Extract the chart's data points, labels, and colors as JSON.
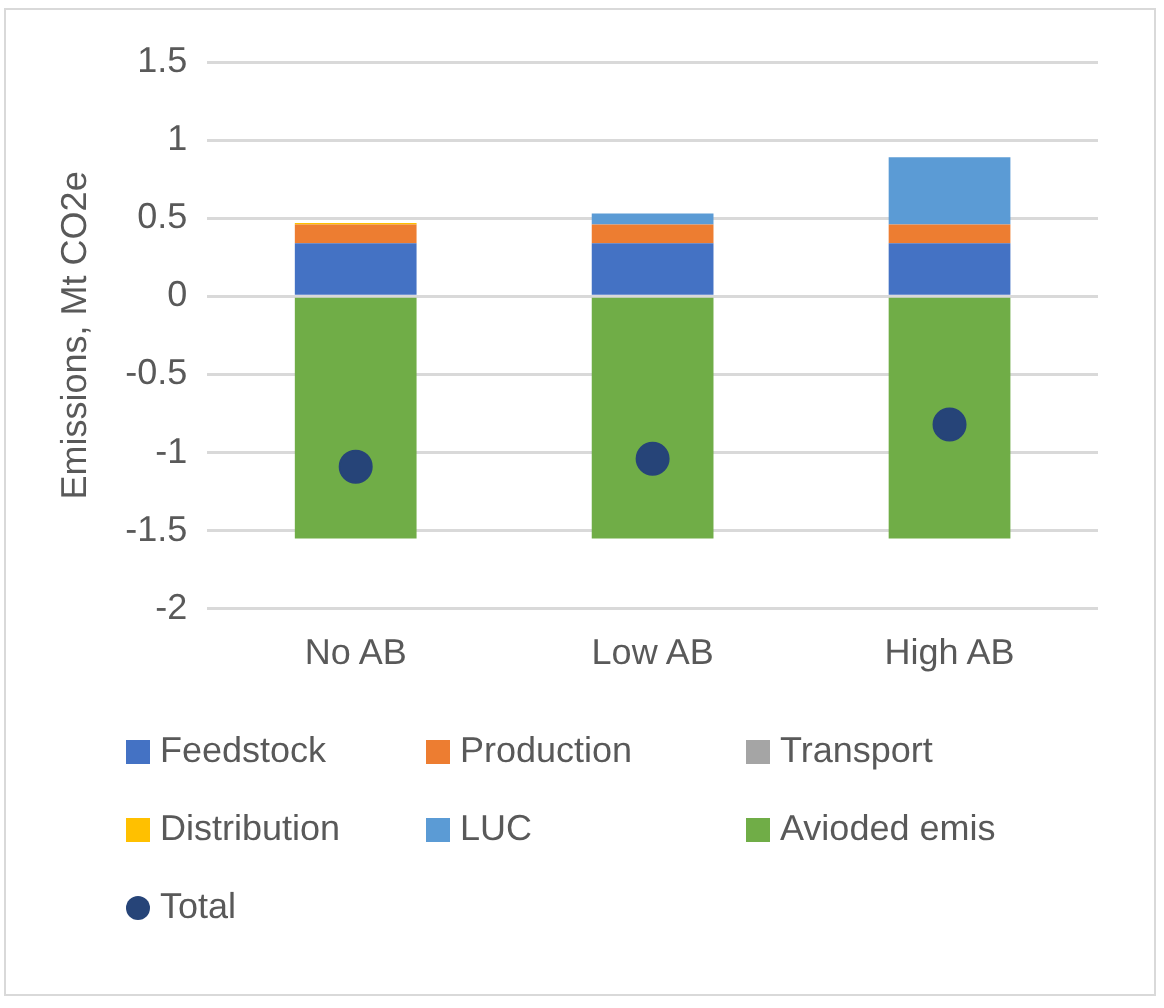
{
  "chart_data": {
    "type": "bar",
    "ylabel": "Emissions, Mt CO2e",
    "categories": [
      "No AB",
      "Low AB",
      "High AB"
    ],
    "stacked": true,
    "series": [
      {
        "name": "Feedstock",
        "color": "#4472c4",
        "values": [
          0.34,
          0.34,
          0.34
        ]
      },
      {
        "name": "Production",
        "color": "#ed7d31",
        "values": [
          0.12,
          0.12,
          0.12
        ]
      },
      {
        "name": "Transport",
        "color": "#a5a5a5",
        "values": [
          0,
          0,
          0
        ]
      },
      {
        "name": "Distribution",
        "color": "#ffc000",
        "values": [
          0.01,
          0,
          0
        ]
      },
      {
        "name": "LUC",
        "color": "#5b9bd5",
        "values": [
          0,
          0.07,
          0.43
        ]
      },
      {
        "name": "Avioded emis",
        "color": "#70ad47",
        "values": [
          -1.55,
          -1.55,
          -1.55
        ]
      },
      {
        "name": "Total",
        "type": "scatter",
        "marker": "circle",
        "color": "#264478",
        "values": [
          -1.09,
          -1.04,
          -0.82
        ]
      }
    ],
    "ylim": [
      -2,
      1.5
    ],
    "yticks": [
      -2,
      -1.5,
      -1,
      -0.5,
      0,
      0.5,
      1,
      1.5
    ],
    "grid": "y",
    "legend": "bottom"
  }
}
